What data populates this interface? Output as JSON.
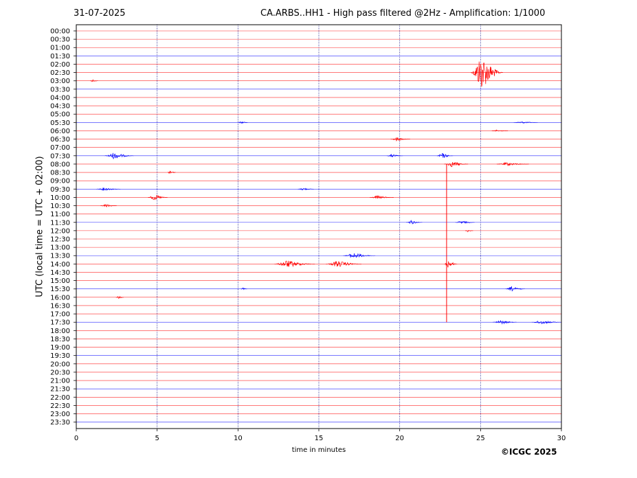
{
  "header": {
    "date": "31-07-2025",
    "title": "CA.ARBS..HH1 - High pass filtered @2Hz - Amplification: 1/1000"
  },
  "footer": {
    "copyright": "©ICGC 2025"
  },
  "colors": {
    "trace_a": "#ff0000",
    "trace_b": "#0000ff",
    "grid": "#000080",
    "axis": "#000000"
  },
  "chart_data": {
    "type": "line",
    "title": "CA.ARBS..HH1 - High pass filtered @2Hz - Amplification: 1/1000",
    "xlabel": "time in minutes",
    "ylabel": "UTC (local time = UTC + 02:00)",
    "xlim": [
      0,
      30
    ],
    "x_ticks": [
      0,
      5,
      10,
      15,
      20,
      25,
      30
    ],
    "vertical_grid": [
      5,
      10,
      15,
      20,
      25
    ],
    "grid": true,
    "row_labels": [
      "00:00",
      "00:30",
      "01:00",
      "01:30",
      "02:00",
      "02:30",
      "03:00",
      "03:30",
      "04:00",
      "04:30",
      "05:00",
      "05:30",
      "06:00",
      "06:30",
      "07:00",
      "07:30",
      "08:00",
      "08:30",
      "09:00",
      "09:30",
      "10:00",
      "10:30",
      "11:00",
      "11:30",
      "12:00",
      "12:30",
      "13:00",
      "13:30",
      "14:00",
      "14:30",
      "15:00",
      "15:30",
      "16:00",
      "16:30",
      "17:00",
      "17:30",
      "18:00",
      "18:30",
      "19:00",
      "19:30",
      "20:00",
      "20:30",
      "21:00",
      "21:30",
      "22:00",
      "22:30",
      "23:00",
      "23:30"
    ],
    "row_color_pattern": [
      "red",
      "red",
      "red",
      "blue"
    ],
    "events": [
      {
        "row": "02:30",
        "minute": 25.0,
        "duration": 2.0,
        "amplitude": 2.2
      },
      {
        "row": "03:00",
        "minute": 1.0,
        "duration": 0.5,
        "amplitude": 0.15
      },
      {
        "row": "05:30",
        "minute": 10.2,
        "duration": 0.6,
        "amplitude": 0.15
      },
      {
        "row": "05:30",
        "minute": 27.5,
        "duration": 1.5,
        "amplitude": 0.12
      },
      {
        "row": "06:00",
        "minute": 26.0,
        "duration": 1.0,
        "amplitude": 0.12
      },
      {
        "row": "06:30",
        "minute": 19.8,
        "duration": 1.2,
        "amplitude": 0.25
      },
      {
        "row": "07:30",
        "minute": 2.3,
        "duration": 1.8,
        "amplitude": 0.4
      },
      {
        "row": "07:30",
        "minute": 19.5,
        "duration": 1.0,
        "amplitude": 0.2
      },
      {
        "row": "07:30",
        "minute": 22.6,
        "duration": 1.0,
        "amplitude": 0.35
      },
      {
        "row": "08:00",
        "minute": 23.2,
        "duration": 1.5,
        "amplitude": 0.35
      },
      {
        "row": "08:00",
        "minute": 26.6,
        "duration": 2.0,
        "amplitude": 0.2
      },
      {
        "row": "08:30",
        "minute": 5.8,
        "duration": 0.5,
        "amplitude": 0.3
      },
      {
        "row": "09:30",
        "minute": 1.7,
        "duration": 1.5,
        "amplitude": 0.2
      },
      {
        "row": "09:30",
        "minute": 14.0,
        "duration": 1.0,
        "amplitude": 0.15
      },
      {
        "row": "10:00",
        "minute": 4.8,
        "duration": 1.2,
        "amplitude": 0.35
      },
      {
        "row": "10:00",
        "minute": 18.6,
        "duration": 1.5,
        "amplitude": 0.2
      },
      {
        "row": "10:30",
        "minute": 1.8,
        "duration": 1.0,
        "amplitude": 0.2
      },
      {
        "row": "11:30",
        "minute": 20.7,
        "duration": 1.0,
        "amplitude": 0.25
      },
      {
        "row": "11:30",
        "minute": 23.8,
        "duration": 1.2,
        "amplitude": 0.2
      },
      {
        "row": "12:00",
        "minute": 24.2,
        "duration": 0.5,
        "amplitude": 0.15
      },
      {
        "row": "13:30",
        "minute": 17.1,
        "duration": 2.0,
        "amplitude": 0.35
      },
      {
        "row": "14:00",
        "minute": 13.0,
        "duration": 2.5,
        "amplitude": 0.45
      },
      {
        "row": "14:00",
        "minute": 16.1,
        "duration": 2.2,
        "amplitude": 0.4
      },
      {
        "row": "14:00",
        "minute": 23.0,
        "duration": 0.8,
        "amplitude": 0.5
      },
      {
        "row": "15:30",
        "minute": 10.3,
        "duration": 0.4,
        "amplitude": 0.15
      },
      {
        "row": "15:30",
        "minute": 26.9,
        "duration": 1.2,
        "amplitude": 0.3
      },
      {
        "row": "16:00",
        "minute": 2.6,
        "duration": 0.5,
        "amplitude": 0.15
      },
      {
        "row": "17:30",
        "minute": 26.2,
        "duration": 1.5,
        "amplitude": 0.25
      },
      {
        "row": "17:30",
        "minute": 28.7,
        "duration": 1.8,
        "amplitude": 0.25
      }
    ],
    "spike": {
      "minute": 22.9,
      "from_row": "08:00",
      "to_row": "17:30"
    }
  }
}
